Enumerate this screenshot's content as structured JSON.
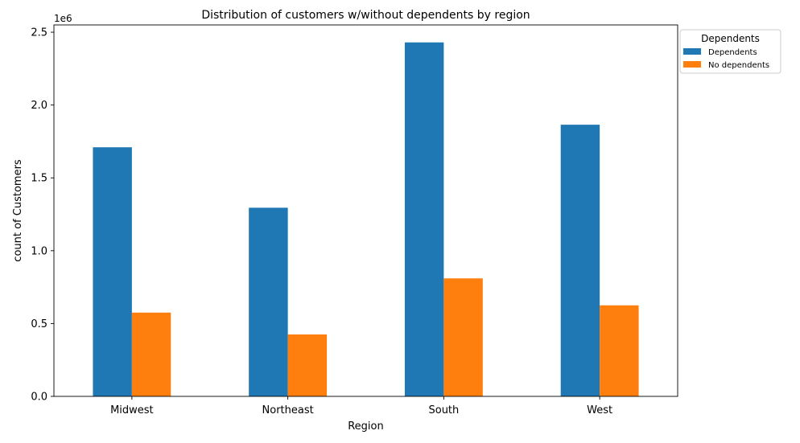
{
  "chart_data": {
    "type": "bar",
    "title": "Distribution of customers w/without dependents by region",
    "xlabel": "Region",
    "ylabel": "count of Customers",
    "y_offset_label": "1e6",
    "ylim": [
      0,
      2.55
    ],
    "yticks": [
      "0.0",
      "0.5",
      "1.0",
      "1.5",
      "2.0",
      "2.5"
    ],
    "ytick_values": [
      0,
      0.5,
      1.0,
      1.5,
      2.0,
      2.5
    ],
    "categories": [
      "Midwest",
      "Northeast",
      "South",
      "West"
    ],
    "series": [
      {
        "name": "Dependents",
        "color": "#1f77b4",
        "values": [
          1.71,
          1.295,
          2.43,
          1.865
        ]
      },
      {
        "name": "No dependents",
        "color": "#ff7f0e",
        "values": [
          0.575,
          0.425,
          0.81,
          0.625
        ]
      }
    ],
    "legend": {
      "title": "Dependents",
      "placement": "outside-top-right"
    },
    "grid": false
  }
}
